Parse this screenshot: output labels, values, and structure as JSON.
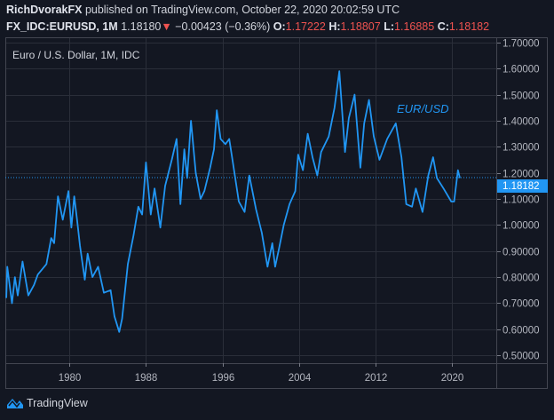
{
  "header": {
    "author": "RichDvorakFX",
    "published": "published on TradingView.com, October 22, 2020 20:02:59 UTC",
    "symbol": "FX_IDC:EURUSD, 1M",
    "last": "1.18180",
    "change": "−0.00423 (−0.36%)",
    "o_label": "O:",
    "o": "1.17222",
    "h_label": "H:",
    "h": "1.18807",
    "l_label": "L:",
    "l": "1.16885",
    "c_label": "C:",
    "c": "1.18182",
    "direction_icon": "triangle-down-icon"
  },
  "logo_text": "TradingView",
  "colors": {
    "line": "#2196f3",
    "background": "#131722",
    "grid": "#2a2e39",
    "down": "#ef5350"
  },
  "chart_data": {
    "type": "line",
    "title": "Euro / U.S. Dollar, 1M, IDC",
    "annotation": "EUR/USD",
    "last_price_label": "1.18182",
    "last_price": 1.18182,
    "xlim": [
      1973.3,
      2024.7
    ],
    "ylim": [
      0.47,
      1.72
    ],
    "grid": true,
    "x_ticks": [
      "1980",
      "1988",
      "1996",
      "2004",
      "2012",
      "2020"
    ],
    "y_ticks": [
      "1.70000",
      "1.60000",
      "1.50000",
      "1.40000",
      "1.30000",
      "1.20000",
      "1.10000",
      "1.00000",
      "0.90000",
      "0.80000",
      "0.70000",
      "0.60000",
      "0.50000"
    ],
    "points": [
      [
        1973.4,
        0.72
      ],
      [
        1973.5,
        0.84
      ],
      [
        1974.0,
        0.7
      ],
      [
        1974.3,
        0.8
      ],
      [
        1974.6,
        0.73
      ],
      [
        1975.1,
        0.86
      ],
      [
        1975.7,
        0.73
      ],
      [
        1976.3,
        0.77
      ],
      [
        1976.7,
        0.81
      ],
      [
        1977.6,
        0.85
      ],
      [
        1978.1,
        0.95
      ],
      [
        1978.4,
        0.93
      ],
      [
        1978.8,
        1.11
      ],
      [
        1979.3,
        1.02
      ],
      [
        1979.9,
        1.13
      ],
      [
        1980.2,
        0.99
      ],
      [
        1980.5,
        1.11
      ],
      [
        1980.8,
        1.02
      ],
      [
        1981.1,
        0.92
      ],
      [
        1981.6,
        0.79
      ],
      [
        1981.9,
        0.89
      ],
      [
        1982.4,
        0.8
      ],
      [
        1983.0,
        0.84
      ],
      [
        1983.6,
        0.74
      ],
      [
        1984.3,
        0.75
      ],
      [
        1984.7,
        0.65
      ],
      [
        1985.2,
        0.59
      ],
      [
        1985.5,
        0.64
      ],
      [
        1986.1,
        0.85
      ],
      [
        1986.7,
        0.96
      ],
      [
        1987.2,
        1.07
      ],
      [
        1987.6,
        1.04
      ],
      [
        1988.0,
        1.24
      ],
      [
        1988.5,
        1.04
      ],
      [
        1988.9,
        1.14
      ],
      [
        1989.5,
        0.99
      ],
      [
        1990.0,
        1.15
      ],
      [
        1990.7,
        1.25
      ],
      [
        1991.2,
        1.33
      ],
      [
        1991.6,
        1.08
      ],
      [
        1992.0,
        1.29
      ],
      [
        1992.3,
        1.18
      ],
      [
        1992.7,
        1.4
      ],
      [
        1993.2,
        1.2
      ],
      [
        1993.7,
        1.1
      ],
      [
        1994.1,
        1.13
      ],
      [
        1994.7,
        1.22
      ],
      [
        1995.1,
        1.29
      ],
      [
        1995.4,
        1.44
      ],
      [
        1995.8,
        1.33
      ],
      [
        1996.3,
        1.31
      ],
      [
        1996.7,
        1.33
      ],
      [
        1997.0,
        1.26
      ],
      [
        1997.7,
        1.09
      ],
      [
        1998.3,
        1.05
      ],
      [
        1998.8,
        1.19
      ],
      [
        1999.5,
        1.06
      ],
      [
        2000.1,
        0.97
      ],
      [
        2000.7,
        0.84
      ],
      [
        2001.2,
        0.93
      ],
      [
        2001.5,
        0.84
      ],
      [
        2001.9,
        0.91
      ],
      [
        2002.4,
        1.0
      ],
      [
        2003.0,
        1.08
      ],
      [
        2003.6,
        1.13
      ],
      [
        2003.9,
        1.27
      ],
      [
        2004.4,
        1.21
      ],
      [
        2004.9,
        1.35
      ],
      [
        2005.4,
        1.26
      ],
      [
        2005.9,
        1.19
      ],
      [
        2006.3,
        1.28
      ],
      [
        2007.1,
        1.34
      ],
      [
        2007.7,
        1.45
      ],
      [
        2008.2,
        1.59
      ],
      [
        2008.8,
        1.28
      ],
      [
        2009.2,
        1.41
      ],
      [
        2009.8,
        1.5
      ],
      [
        2010.4,
        1.22
      ],
      [
        2010.8,
        1.39
      ],
      [
        2011.3,
        1.48
      ],
      [
        2011.8,
        1.34
      ],
      [
        2012.4,
        1.25
      ],
      [
        2013.2,
        1.33
      ],
      [
        2014.1,
        1.39
      ],
      [
        2014.7,
        1.26
      ],
      [
        2015.2,
        1.08
      ],
      [
        2015.8,
        1.07
      ],
      [
        2016.2,
        1.14
      ],
      [
        2016.9,
        1.05
      ],
      [
        2017.5,
        1.19
      ],
      [
        2018.0,
        1.26
      ],
      [
        2018.4,
        1.18
      ],
      [
        2019.1,
        1.14
      ],
      [
        2019.9,
        1.09
      ],
      [
        2020.2,
        1.09
      ],
      [
        2020.6,
        1.21
      ],
      [
        2020.8,
        1.18
      ]
    ]
  }
}
